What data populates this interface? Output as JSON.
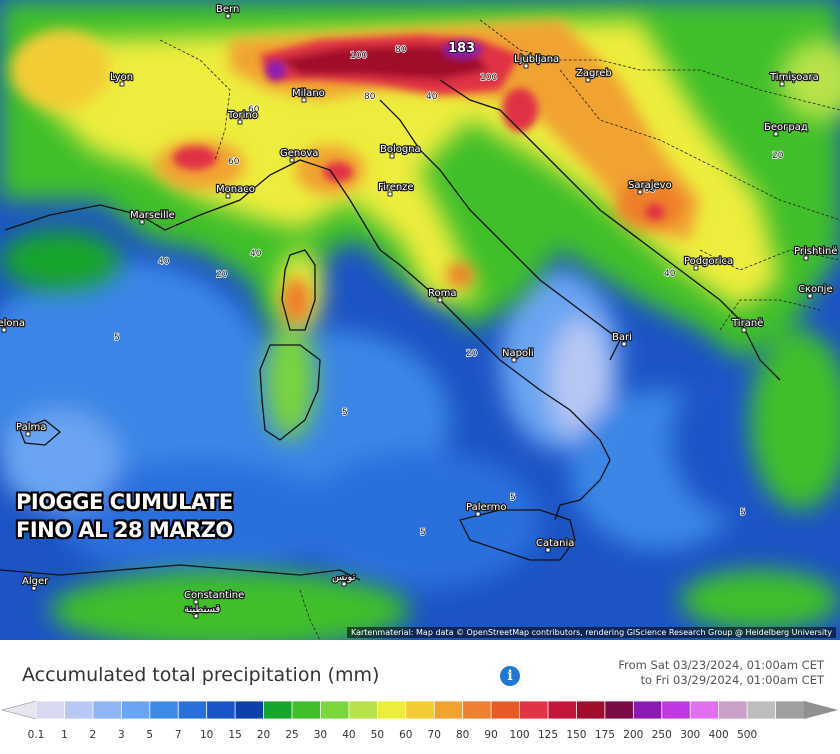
{
  "headline": {
    "line1": "PIOGGE CUMULATE",
    "line2": "FINO AL 28 MARZO"
  },
  "map": {
    "peak_value": "183",
    "cities": [
      "Bern",
      "Lyon",
      "Milano",
      "Torino",
      "Genova",
      "Monaco",
      "Marseille",
      "Bologna",
      "Firenze",
      "Roma",
      "Napoli",
      "Bari",
      "Palermo",
      "Catania",
      "Ljubljana",
      "Zagreb",
      "Sarajevo",
      "Podgorica",
      "Tiranë",
      "Prishtinë",
      "Скопје",
      "Београд",
      "Timișoara",
      "Palma",
      "celona",
      "Alger",
      "Constantine",
      "قسنطينة",
      "تونس"
    ],
    "isolines": [
      "100",
      "80",
      "60",
      "40",
      "20",
      "5"
    ],
    "attribution": "Kartenmaterial: Map data © OpenStreetMap contributors, rendering GIScience Research Group @ Heidelberg University"
  },
  "legend": {
    "title": "Accumulated total precipitation (mm)",
    "period_from": "From Sat 03/23/2024, 01:00am CET",
    "period_to": "to Fri 03/29/2024, 01:00am CET",
    "ticks": [
      "0.1",
      "1",
      "2",
      "3",
      "5",
      "7",
      "10",
      "15",
      "20",
      "25",
      "30",
      "40",
      "50",
      "60",
      "70",
      "80",
      "90",
      "100",
      "125",
      "150",
      "175",
      "200",
      "250",
      "300",
      "400",
      "500"
    ],
    "colors": [
      "#d8d8f0",
      "#b8c8f4",
      "#8fb5f5",
      "#6aa4f2",
      "#3e8ae8",
      "#2a70dd",
      "#1a55c8",
      "#0d40a8",
      "#16a52c",
      "#3fbf2a",
      "#7ad63a",
      "#b8e24a",
      "#eded3c",
      "#f3cc34",
      "#f1a330",
      "#ee7f2c",
      "#e85a28",
      "#e03344",
      "#c4163a",
      "#a00d2c",
      "#7a0a44",
      "#8a1cb4",
      "#c038e4",
      "#e070f0",
      "#c8a0c8",
      "#bdbdbd",
      "#a0a0a0"
    ],
    "underflow_color": "#e6e6ee",
    "overflow_color": "#909090"
  },
  "info_symbol": "i"
}
